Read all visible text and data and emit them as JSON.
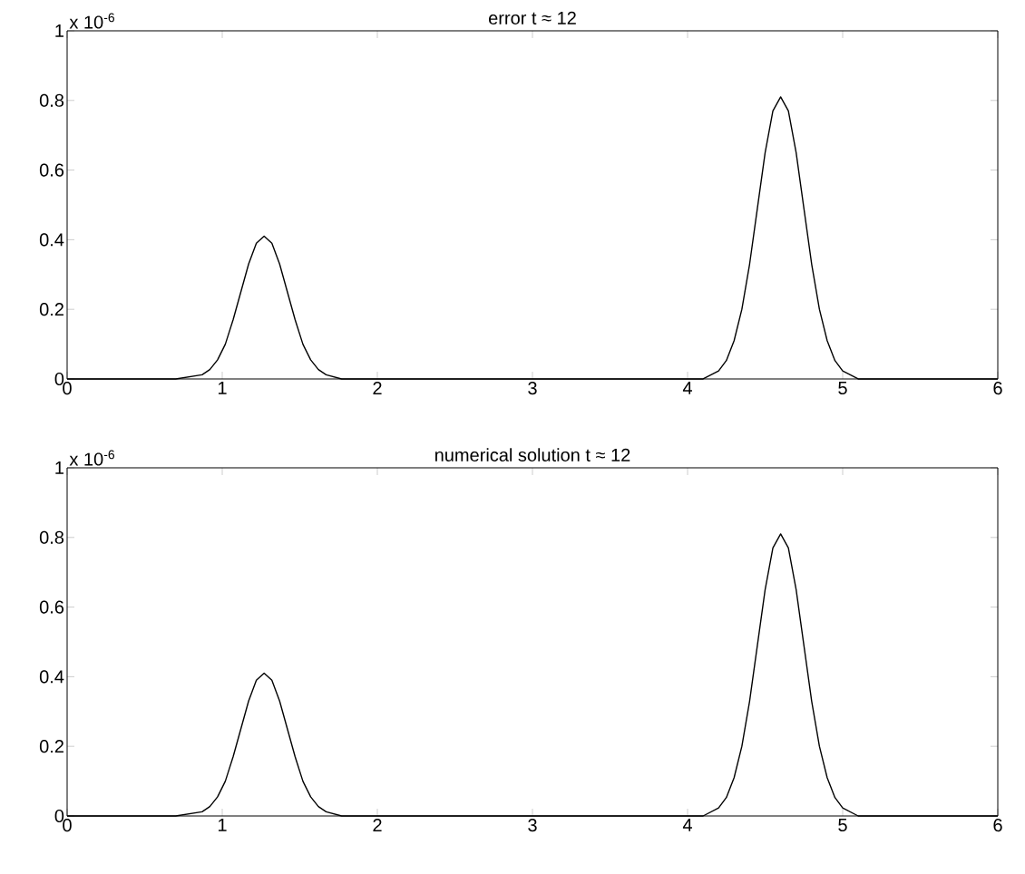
{
  "chart_data": [
    {
      "type": "line",
      "title": "error  t ≈ 12",
      "annotations": [
        "x 10$^{-6}$"
      ],
      "color": "#000000",
      "xlim": [
        0,
        6
      ],
      "ylim": [
        0,
        1
      ],
      "xticks": [
        0,
        1,
        2,
        3,
        4,
        5,
        6
      ],
      "yticks": [
        0,
        0.2,
        0.4,
        0.6,
        0.8,
        1
      ],
      "x": [
        0,
        0.7,
        0.87,
        0.92,
        0.97,
        1.02,
        1.07,
        1.12,
        1.17,
        1.22,
        1.27,
        1.32,
        1.37,
        1.42,
        1.47,
        1.52,
        1.57,
        1.62,
        1.67,
        1.77,
        2,
        4,
        4.1,
        4.2,
        4.25,
        4.3,
        4.35,
        4.4,
        4.45,
        4.5,
        4.55,
        4.6,
        4.65,
        4.7,
        4.75,
        4.8,
        4.85,
        4.9,
        4.95,
        5,
        5.1,
        6
      ],
      "values": [
        0,
        0,
        0.012,
        0.027,
        0.055,
        0.1,
        0.17,
        0.25,
        0.33,
        0.39,
        0.41,
        0.39,
        0.33,
        0.25,
        0.17,
        0.1,
        0.055,
        0.027,
        0.012,
        0,
        0,
        0,
        0,
        0.023,
        0.053,
        0.11,
        0.2,
        0.33,
        0.49,
        0.65,
        0.77,
        0.81,
        0.77,
        0.65,
        0.49,
        0.33,
        0.2,
        0.11,
        0.053,
        0.023,
        0,
        0
      ]
    },
    {
      "type": "line",
      "title": "numerical solution t ≈ 12",
      "annotations": [
        "x 10$^{-6}$"
      ],
      "color": "#000000",
      "xlim": [
        0,
        6
      ],
      "ylim": [
        0,
        1
      ],
      "xticks": [
        0,
        1,
        2,
        3,
        4,
        5,
        6
      ],
      "yticks": [
        0,
        0.2,
        0.4,
        0.6,
        0.8,
        1
      ],
      "x": [
        0,
        0.7,
        0.87,
        0.92,
        0.97,
        1.02,
        1.07,
        1.12,
        1.17,
        1.22,
        1.27,
        1.32,
        1.37,
        1.42,
        1.47,
        1.52,
        1.57,
        1.62,
        1.67,
        1.77,
        2,
        4,
        4.1,
        4.2,
        4.25,
        4.3,
        4.35,
        4.4,
        4.45,
        4.5,
        4.55,
        4.6,
        4.65,
        4.7,
        4.75,
        4.8,
        4.85,
        4.9,
        4.95,
        5,
        5.1,
        6
      ],
      "values": [
        0,
        0,
        0.012,
        0.027,
        0.055,
        0.1,
        0.17,
        0.25,
        0.33,
        0.39,
        0.41,
        0.39,
        0.33,
        0.25,
        0.17,
        0.1,
        0.055,
        0.027,
        0.012,
        0,
        0,
        0,
        0,
        0.023,
        0.053,
        0.11,
        0.2,
        0.33,
        0.49,
        0.65,
        0.77,
        0.81,
        0.77,
        0.65,
        0.49,
        0.33,
        0.2,
        0.11,
        0.053,
        0.023,
        0,
        0
      ]
    }
  ]
}
